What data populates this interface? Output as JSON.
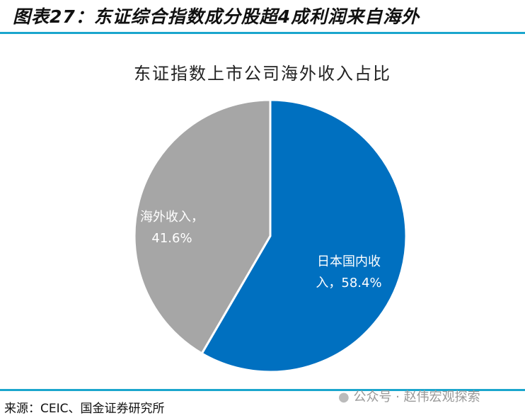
{
  "figure_title": "图表27：东证综合指数成分股超4成利润来自海外",
  "source": "来源：CEIC、国金证券研究所",
  "watermark": "公众号 · 赵伟宏观探索",
  "chart_data": {
    "type": "pie",
    "title": "东证指数上市公司海外收入占比",
    "slices": [
      {
        "label": "日本国内收入",
        "value": 58.4,
        "display": [
          "日本国内收",
          "入，58.4%"
        ],
        "color": "#0070C0"
      },
      {
        "label": "海外收入",
        "value": 41.6,
        "display": [
          "海外收入，",
          "41.6%"
        ],
        "color": "#A6A6A6"
      }
    ],
    "start": "top",
    "direction": "clockwise",
    "legend": "none"
  }
}
